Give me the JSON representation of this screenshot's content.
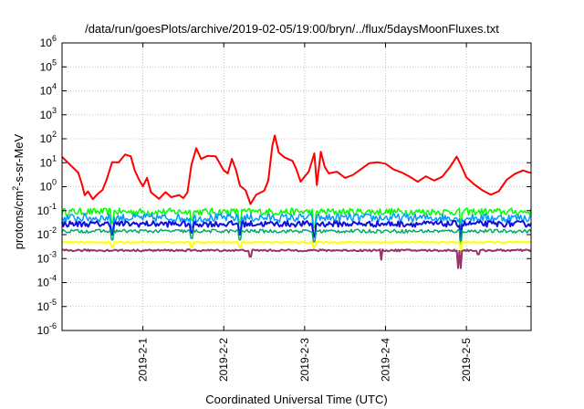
{
  "chart_data": {
    "type": "line",
    "title": "/data/run/goesPlots/archive/2019-02-05/19:00/bryn/../flux/5daysMoonFluxes.txt",
    "xlabel": "Coordinated Universal Time (UTC)",
    "ylabel": "protons/cm²-s-sr-MeV",
    "ylabel_parts": {
      "base": "protons/cm",
      "sup": "2",
      "rest": "-s-sr-MeV"
    },
    "yscale": "log",
    "ylim_exponents": [
      -6,
      6
    ],
    "y_tick_labels": [
      {
        "e": -6,
        "sup": "-6"
      },
      {
        "e": -5,
        "sup": "-5"
      },
      {
        "e": -4,
        "sup": "-4"
      },
      {
        "e": -3,
        "sup": "-3"
      },
      {
        "e": -2,
        "sup": "-2"
      },
      {
        "e": -1,
        "sup": "-1"
      },
      {
        "e": 0,
        "sup": "0"
      },
      {
        "e": 1,
        "sup": "1"
      },
      {
        "e": 2,
        "sup": "2"
      },
      {
        "e": 3,
        "sup": "3"
      },
      {
        "e": 4,
        "sup": "4"
      },
      {
        "e": 5,
        "sup": "5"
      },
      {
        "e": 6,
        "sup": "6"
      }
    ],
    "xlim_days": [
      0,
      5.8
    ],
    "x_tick_labels": [
      "2019-2-1",
      "2019-2-2",
      "2019-2-3",
      "2019-2-4",
      "2019-2-5"
    ],
    "grid": true,
    "series": [
      {
        "color": "#ff0000",
        "width": 2,
        "points": [
          [
            0.0,
            15
          ],
          [
            0.1,
            10
          ],
          [
            0.2,
            4
          ],
          [
            0.25,
            1
          ],
          [
            0.28,
            0.4
          ],
          [
            0.32,
            0.6
          ],
          [
            0.38,
            0.3
          ],
          [
            0.45,
            0.5
          ],
          [
            0.5,
            0.6
          ],
          [
            0.55,
            2
          ],
          [
            0.62,
            12
          ],
          [
            0.7,
            10
          ],
          [
            0.78,
            20
          ],
          [
            0.85,
            18
          ],
          [
            0.9,
            5
          ],
          [
            0.95,
            2
          ],
          [
            1.0,
            1
          ],
          [
            1.05,
            2
          ],
          [
            1.1,
            0.5
          ],
          [
            1.2,
            0.3
          ],
          [
            1.28,
            0.5
          ],
          [
            1.35,
            0.4
          ],
          [
            1.45,
            0.5
          ],
          [
            1.5,
            0.4
          ],
          [
            1.55,
            0.6
          ],
          [
            1.6,
            8
          ],
          [
            1.66,
            50
          ],
          [
            1.72,
            15
          ],
          [
            1.8,
            20
          ],
          [
            1.9,
            15
          ],
          [
            2.0,
            5
          ],
          [
            2.05,
            3
          ],
          [
            2.1,
            15
          ],
          [
            2.15,
            5
          ],
          [
            2.2,
            1
          ],
          [
            2.27,
            0.6
          ],
          [
            2.33,
            0.2
          ],
          [
            2.4,
            0.5
          ],
          [
            2.5,
            0.7
          ],
          [
            2.55,
            2
          ],
          [
            2.6,
            40
          ],
          [
            2.63,
            150
          ],
          [
            2.68,
            30
          ],
          [
            2.75,
            20
          ],
          [
            2.85,
            10
          ],
          [
            2.9,
            5
          ],
          [
            2.95,
            2
          ],
          [
            3.05,
            5
          ],
          [
            3.12,
            20
          ],
          [
            3.15,
            1
          ],
          [
            3.2,
            30
          ],
          [
            3.25,
            8
          ],
          [
            3.3,
            3
          ],
          [
            3.4,
            5
          ],
          [
            3.5,
            2
          ],
          [
            3.6,
            3
          ],
          [
            3.7,
            5
          ],
          [
            3.8,
            8
          ],
          [
            3.9,
            10
          ],
          [
            4.0,
            8
          ],
          [
            4.1,
            5
          ],
          [
            4.2,
            4
          ],
          [
            4.3,
            3
          ],
          [
            4.4,
            2
          ],
          [
            4.5,
            3
          ],
          [
            4.6,
            2
          ],
          [
            4.7,
            3
          ],
          [
            4.8,
            8
          ],
          [
            4.88,
            15
          ],
          [
            4.93,
            8
          ],
          [
            5.0,
            3
          ],
          [
            5.1,
            1
          ],
          [
            5.2,
            0.6
          ],
          [
            5.3,
            0.5
          ],
          [
            5.4,
            0.8
          ],
          [
            5.5,
            2
          ],
          [
            5.6,
            4
          ],
          [
            5.7,
            5
          ],
          [
            5.8,
            4
          ]
        ]
      },
      {
        "color": "#00ff00",
        "width": 1.5,
        "level": 0.09,
        "jitter": 0.3,
        "dips": [
          [
            0.62,
            0.03
          ],
          [
            1.6,
            0.04
          ],
          [
            2.2,
            0.03
          ],
          [
            3.12,
            0.02
          ],
          [
            4.93,
            0.01
          ]
        ]
      },
      {
        "color": "#0099ff",
        "width": 1.5,
        "level": 0.05,
        "jitter": 0.35,
        "dips": [
          [
            0.62,
            0.015
          ],
          [
            1.6,
            0.02
          ],
          [
            2.2,
            0.015
          ],
          [
            3.12,
            0.01
          ],
          [
            4.93,
            0.005
          ]
        ]
      },
      {
        "color": "#1010dd",
        "width": 2,
        "level": 0.028,
        "jitter": 0.25,
        "dips": [
          [
            0.62,
            0.01
          ],
          [
            1.6,
            0.012
          ],
          [
            2.2,
            0.01
          ],
          [
            3.12,
            0.008
          ],
          [
            4.93,
            0.003
          ]
        ]
      },
      {
        "color": "#00aa66",
        "width": 1.5,
        "level": 0.014,
        "jitter": 0.15,
        "dips": [
          [
            0.62,
            0.006
          ],
          [
            1.6,
            0.007
          ],
          [
            2.2,
            0.006
          ],
          [
            3.12,
            0.005
          ],
          [
            4.93,
            0.002
          ]
        ]
      },
      {
        "color": "#ffff00",
        "width": 2,
        "level": 0.0048,
        "jitter": 0.05,
        "dips": [
          [
            0.62,
            0.003
          ],
          [
            1.6,
            0.003
          ],
          [
            2.2,
            0.003
          ],
          [
            3.12,
            0.003
          ],
          [
            4.93,
            0.002
          ]
        ]
      },
      {
        "color": "#993366",
        "width": 2,
        "level": 0.0022,
        "jitter": 0.08,
        "dips": [
          [
            2.33,
            0.0012
          ],
          [
            3.95,
            0.0009
          ],
          [
            4.9,
            0.0004
          ],
          [
            4.93,
            0.0004
          ],
          [
            5.15,
            0.0015
          ]
        ]
      }
    ]
  }
}
